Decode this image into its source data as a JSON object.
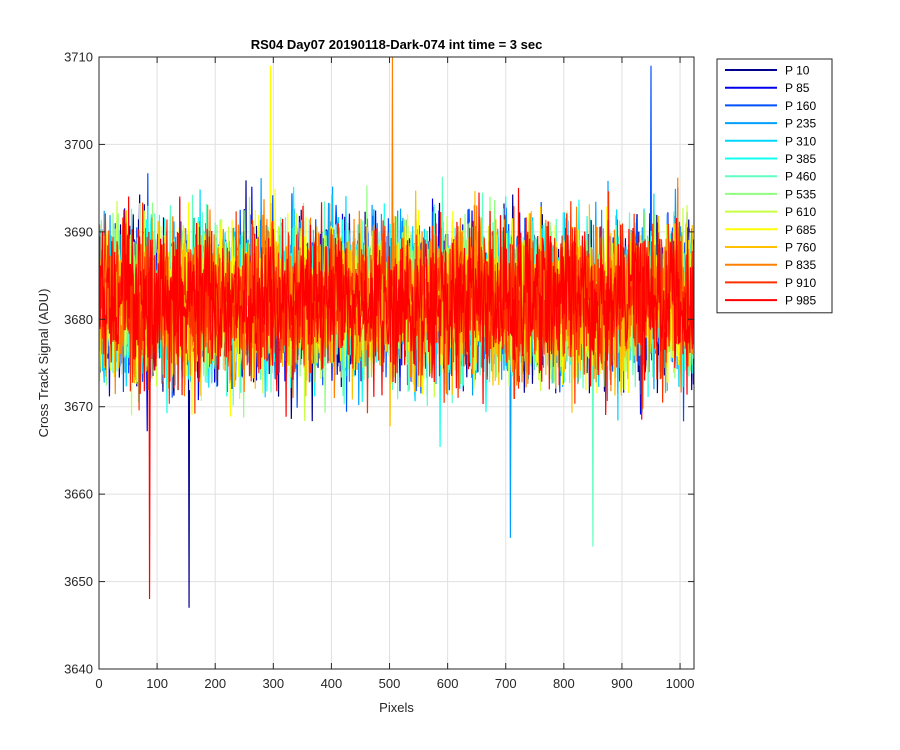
{
  "chart_data": {
    "type": "line",
    "title": "RS04 Day07 20190118-Dark-074 int time = 3 sec",
    "xlabel": "Pixels",
    "ylabel": "Cross Track Signal (ADU)",
    "xlim": [
      0,
      1024
    ],
    "ylim": [
      3640,
      3710
    ],
    "xticks": [
      0,
      100,
      200,
      300,
      400,
      500,
      600,
      700,
      800,
      900,
      1000
    ],
    "yticks": [
      3640,
      3650,
      3660,
      3670,
      3680,
      3690,
      3700,
      3710
    ],
    "grid": true,
    "legend_position": "outside-right-top",
    "series_summary": {
      "n_points_per_series": 1024,
      "approx_mean": 3682,
      "approx_range": [
        3660,
        3704
      ]
    },
    "notable_points": [
      {
        "series": "P 10",
        "x": 155,
        "y": 3647
      },
      {
        "series": "P 985",
        "x": 87,
        "y": 3648
      },
      {
        "series": "P 835",
        "x": 505,
        "y": 3710
      },
      {
        "series": "P 160",
        "x": 950,
        "y": 3709
      },
      {
        "series": "P 685",
        "x": 295,
        "y": 3709
      },
      {
        "series": "P 460",
        "x": 850,
        "y": 3654
      },
      {
        "series": "P 235",
        "x": 708,
        "y": 3655
      }
    ],
    "series": [
      {
        "name": "P 10",
        "color": "#00008f"
      },
      {
        "name": "P 85",
        "color": "#0000ef"
      },
      {
        "name": "P 160",
        "color": "#0050ff"
      },
      {
        "name": "P 235",
        "color": "#00a0ff"
      },
      {
        "name": "P 310",
        "color": "#00d5ff"
      },
      {
        "name": "P 385",
        "color": "#10ffef"
      },
      {
        "name": "P 460",
        "color": "#60ffc0"
      },
      {
        "name": "P 535",
        "color": "#90ff80"
      },
      {
        "name": "P 610",
        "color": "#c8ff40"
      },
      {
        "name": "P 685",
        "color": "#ffff00"
      },
      {
        "name": "P 760",
        "color": "#ffc000"
      },
      {
        "name": "P 835",
        "color": "#ff8000"
      },
      {
        "name": "P 910",
        "color": "#ff3000"
      },
      {
        "name": "P 985",
        "color": "#ff0000"
      }
    ]
  }
}
